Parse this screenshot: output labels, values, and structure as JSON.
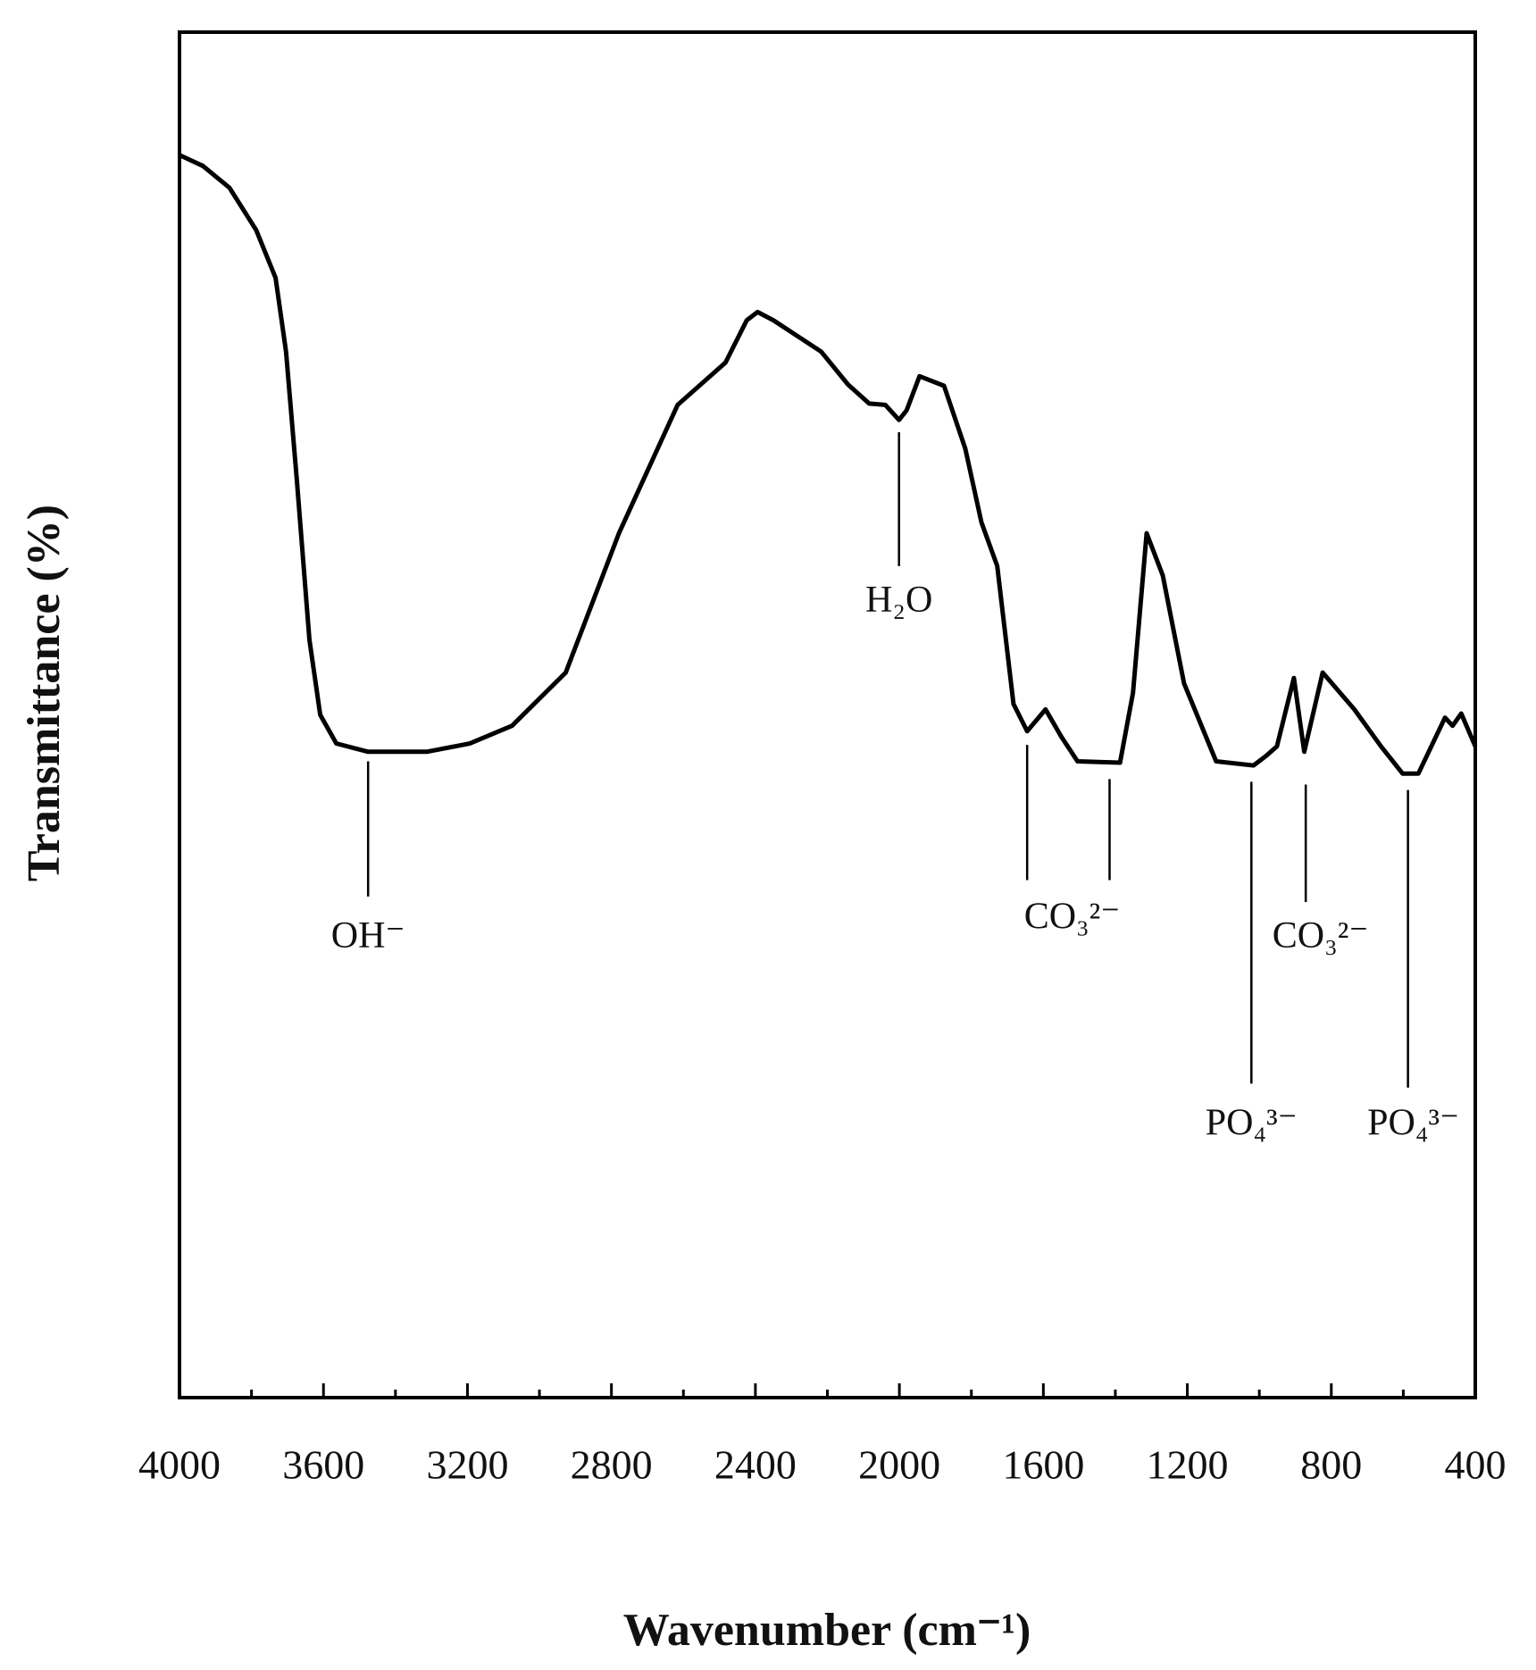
{
  "chart_data": {
    "type": "line",
    "xlabel": "Wavenumber (cm⁻¹)",
    "ylabel": "Transmittance (%)",
    "color": "#000000",
    "xlim": [
      4000,
      400
    ],
    "ylim": [
      0,
      100
    ],
    "xticks": [
      4000,
      3600,
      3200,
      2800,
      2400,
      2000,
      1600,
      1200,
      800,
      400
    ],
    "minor_xticks": [
      3800,
      3400,
      3000,
      2600,
      2200,
      1800,
      1400,
      1000,
      600
    ],
    "x": [
      4000,
      3935,
      3861,
      3787,
      3733,
      3704,
      3674,
      3639,
      3609,
      3564,
      3476,
      3313,
      3194,
      3076,
      2927,
      2779,
      2616,
      2483,
      2424,
      2394,
      2350,
      2217,
      2143,
      2084,
      2039,
      2001,
      1980,
      1944,
      1876,
      1817,
      1772,
      1728,
      1683,
      1645,
      1594,
      1550,
      1505,
      1387,
      1351,
      1313,
      1268,
      1209,
      1120,
      1016,
      981,
      951,
      904,
      875,
      824,
      736,
      662,
      602,
      558,
      484,
      463,
      439,
      400
    ],
    "values": [
      91.0,
      90.2,
      88.6,
      85.5,
      82.0,
      76.6,
      67.2,
      55.5,
      50.0,
      47.9,
      47.3,
      47.3,
      47.9,
      49.2,
      53.1,
      63.3,
      72.7,
      75.8,
      78.9,
      79.5,
      78.9,
      76.6,
      74.2,
      72.8,
      72.7,
      71.6,
      72.3,
      74.8,
      74.1,
      69.5,
      64.1,
      60.9,
      50.8,
      48.8,
      50.4,
      48.4,
      46.6,
      46.5,
      51.6,
      63.3,
      60.2,
      52.3,
      46.6,
      46.3,
      47.0,
      47.7,
      52.7,
      47.3,
      53.1,
      50.4,
      47.7,
      45.7,
      45.7,
      49.8,
      49.2,
      50.1,
      47.7
    ],
    "annotations": [
      {
        "text": "OH⁻",
        "x": 3476,
        "y": 33.6,
        "lines": [
          {
            "x": 3476,
            "y": [
              46.6,
              36.7
            ]
          }
        ]
      },
      {
        "text": "H₂O",
        "x": 2001,
        "y": 58.2,
        "lines": [
          {
            "x": 2001,
            "y": [
              70.7,
              60.9
            ]
          }
        ]
      },
      {
        "text": "CO₃²⁻",
        "x": 1520,
        "y": 35.0,
        "lines": [
          {
            "x": 1645,
            "y": [
              47.8,
              37.9
            ]
          },
          {
            "x": 1416,
            "y": [
              45.3,
              37.9
            ]
          }
        ]
      },
      {
        "text": "PO₄³⁻",
        "x": 1022,
        "y": 19.9,
        "lines": [
          {
            "x": 1022,
            "y": [
              45.1,
              23.0
            ]
          }
        ]
      },
      {
        "text": "CO₃²⁻",
        "x": 830,
        "y": 33.6,
        "lines": [
          {
            "x": 871,
            "y": [
              44.9,
              36.3
            ]
          }
        ]
      },
      {
        "text": "PO₄³⁻",
        "x": 572,
        "y": 19.9,
        "lines": [
          {
            "x": 587,
            "y": [
              44.5,
              22.7
            ]
          }
        ]
      }
    ]
  }
}
